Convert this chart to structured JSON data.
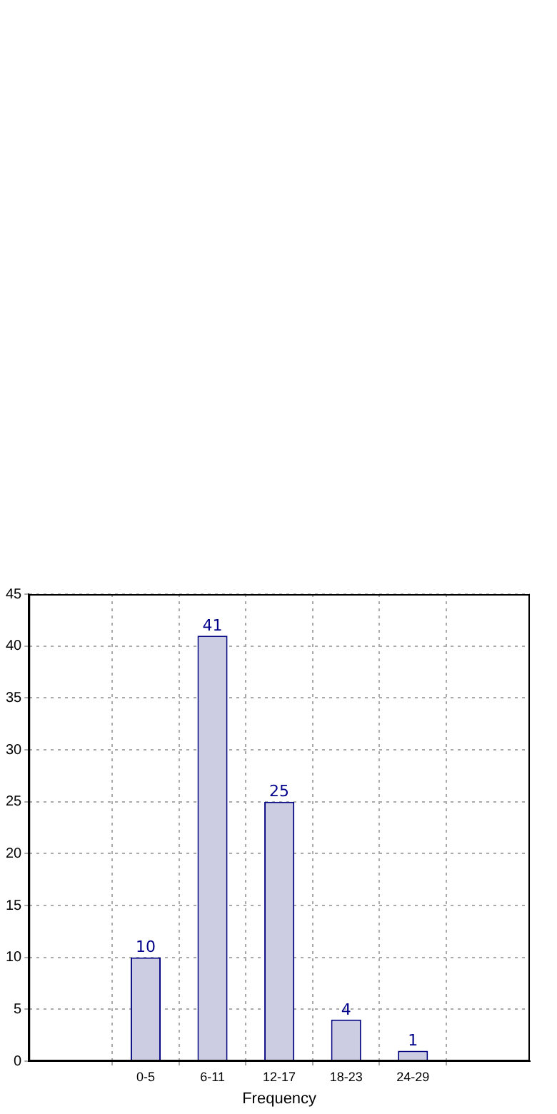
{
  "chart_data": {
    "type": "bar",
    "xlabel": "Frequency",
    "categories": [
      "0-5",
      "6-11",
      "12-17",
      "18-23",
      "24-29"
    ],
    "series": [
      {
        "color": "#ccccE2",
        "values": [
          10,
          41,
          25,
          4,
          1
        ]
      }
    ],
    "ylim": [
      0,
      45
    ],
    "yticks": [
      0,
      5,
      10,
      15,
      20,
      25,
      30,
      35,
      40,
      45
    ],
    "grid": true,
    "data_labels": true,
    "legend": false
  }
}
